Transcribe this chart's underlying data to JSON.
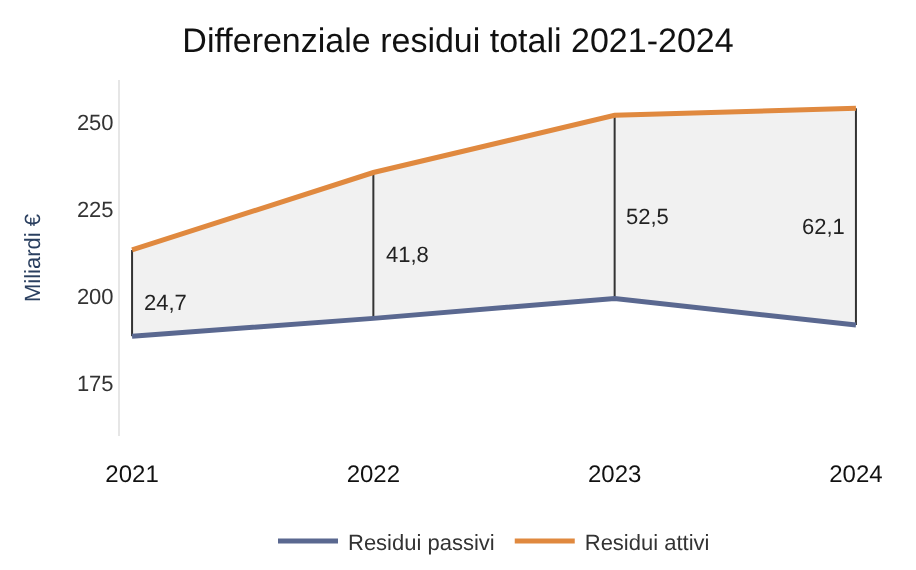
{
  "chart_data": {
    "type": "line",
    "title": "Differenziale residui totali 2021-2024",
    "ylabel": "Miliardi €",
    "categories": [
      "2021",
      "2022",
      "2023",
      "2024"
    ],
    "series": [
      {
        "name": "Residui attivi",
        "color": "#e0893f",
        "values": [
          213.3,
          235.5,
          251.9,
          253.9
        ],
        "errors": [
          [
            188.6,
            213.3
          ],
          [
            193.7,
            235.5
          ],
          [
            199.4,
            251.9
          ],
          [
            191.8,
            253.9
          ]
        ],
        "lower": [
          188.6,
          193.7,
          199.4,
          191.8
        ],
        "upper": [
          213.3,
          235.5,
          251.9,
          253.9
        ]
      },
      {
        "name": "Residui passivi",
        "color": "#5a6890",
        "values": [
          188.6,
          193.7,
          199.4,
          191.8
        ]
      }
    ],
    "annotations": [
      "24,7",
      "41,8",
      "52,5",
      "62,1"
    ],
    "ylim": [
      160,
      262
    ],
    "yticks": [
      175,
      200,
      225,
      250
    ],
    "grid": false,
    "legend": "bottom",
    "marker": "none",
    "line_style": "solid"
  }
}
